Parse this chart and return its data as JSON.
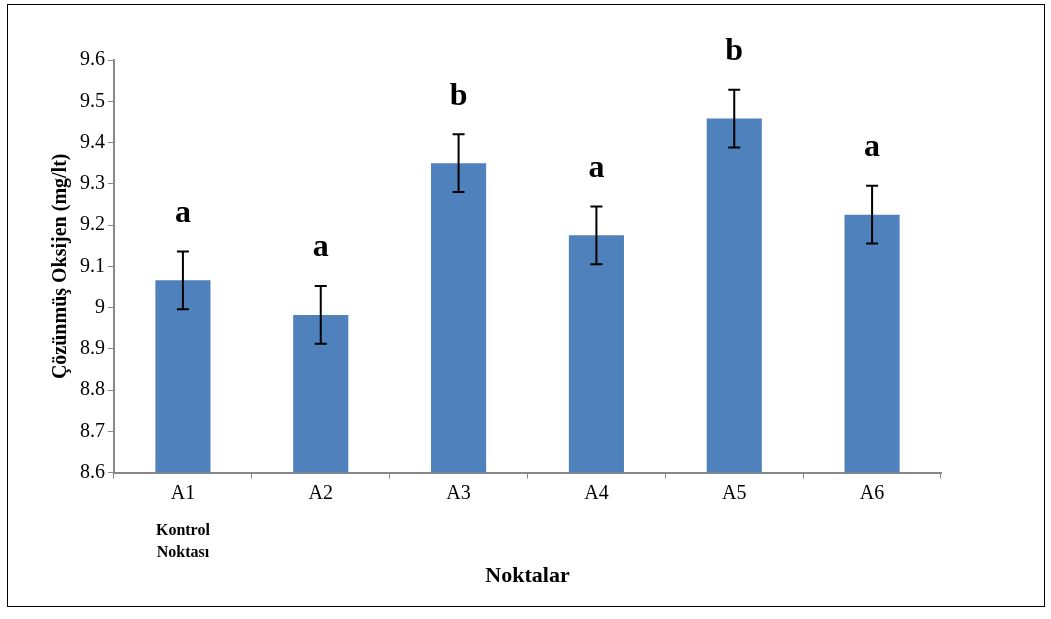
{
  "chart_data": {
    "type": "bar",
    "xlabel": "Noktalar",
    "ylabel": "Çözünmüş Oksijen (mg/lt)",
    "categories": [
      "A1",
      "A2",
      "A3",
      "A4",
      "A5",
      "A6"
    ],
    "values": [
      9.066,
      8.982,
      9.35,
      9.175,
      9.458,
      9.225
    ],
    "errors": [
      0.07,
      0.07,
      0.07,
      0.07,
      0.07,
      0.07
    ],
    "color": "#4f81bd",
    "ylim": [
      8.6,
      9.6
    ],
    "yticks": [
      8.6,
      8.7,
      8.8,
      8.9,
      9,
      9.1,
      9.2,
      9.3,
      9.4,
      9.5,
      9.6
    ],
    "grid": false,
    "legend": false,
    "annotations": [
      {
        "text": "a",
        "x": "A1",
        "y": 9.136
      },
      {
        "text": "a",
        "x": "A2",
        "y": 9.052
      },
      {
        "text": "b",
        "x": "A3",
        "y": 9.42
      },
      {
        "text": "a",
        "x": "A4",
        "y": 9.245
      },
      {
        "text": "b",
        "x": "A5",
        "y": 9.528
      },
      {
        "text": "a",
        "x": "A6",
        "y": 9.295
      },
      "Kontrol Noktası"
    ]
  }
}
